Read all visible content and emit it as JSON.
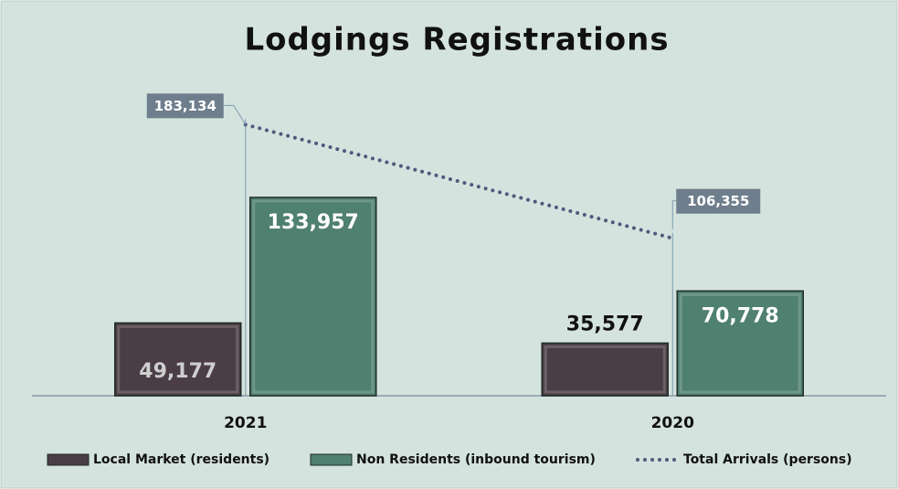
{
  "chart_data": {
    "type": "bar",
    "title": "Lodgings Registrations",
    "categories": [
      "2021",
      "2020"
    ],
    "ylim": [
      0,
      200000
    ],
    "series": [
      {
        "name": "Local Market (residents)",
        "type": "bar",
        "color": "#4b3d45",
        "values": [
          49177,
          35577
        ],
        "value_labels": [
          "49,177",
          "35,577"
        ]
      },
      {
        "name": "Non Residents (inbound tourism)",
        "type": "bar",
        "color": "#4f8070",
        "values": [
          133957,
          70778
        ],
        "value_labels": [
          "133,957",
          "70,778"
        ]
      },
      {
        "name": "Total Arrivals (persons)",
        "type": "line",
        "color": "#4c5a7e",
        "values": [
          183134,
          106355
        ],
        "value_labels": [
          "183,134",
          "106,355"
        ]
      }
    ],
    "legend": "bottom"
  }
}
